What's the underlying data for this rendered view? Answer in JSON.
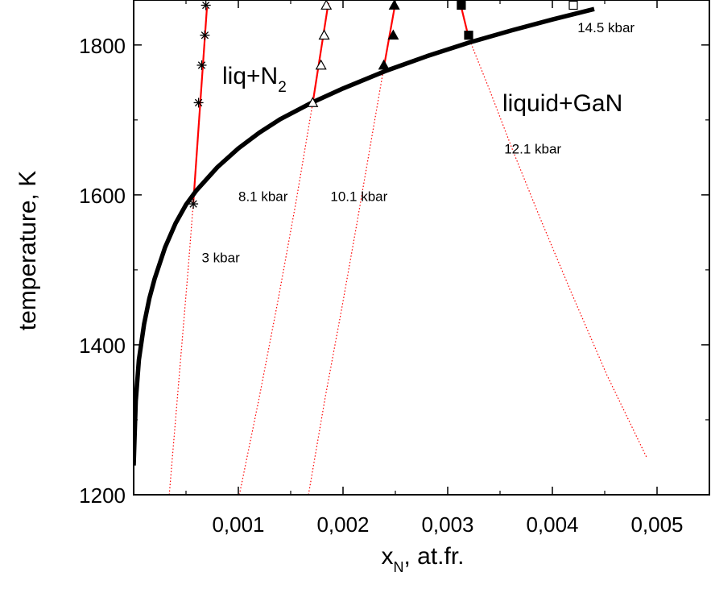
{
  "chart_data": {
    "type": "line",
    "xlabel": "x",
    "xlabel_sub": "N",
    "xlabel_suffix": ", at.fr.",
    "ylabel": "temperature, K",
    "xlim": [
      0.0,
      0.0055
    ],
    "ylim": [
      1200,
      1860
    ],
    "x_ticks": [
      0.001,
      0.002,
      0.003,
      0.004,
      0.005
    ],
    "x_tick_labels": [
      "0,001",
      "0,002",
      "0,003",
      "0,004",
      "0,005"
    ],
    "y_ticks": [
      1200,
      1400,
      1600,
      1800
    ],
    "y_tick_labels": [
      "1200",
      "1400",
      "1600",
      "1800"
    ],
    "grid": false,
    "regions": {
      "liq_n2": "liq+N",
      "liq_n2_sub": "2",
      "liquid_gan": "liquid+GaN"
    },
    "liquidus": {
      "color": "#000000",
      "x": [
        0.0,
        2e-05,
        5e-05,
        0.0001,
        0.00015,
        0.0002,
        0.0003,
        0.0004,
        0.0005,
        0.0006,
        0.0008,
        0.001,
        0.0012,
        0.0014,
        0.0017,
        0.002,
        0.0024,
        0.0028,
        0.0032,
        0.0036,
        0.004,
        0.0044
      ],
      "y": [
        1239,
        1325,
        1380,
        1428,
        1462,
        1488,
        1530,
        1562,
        1587,
        1606,
        1637,
        1662,
        1683,
        1701,
        1723,
        1742,
        1765,
        1785,
        1803,
        1819,
        1834,
        1848
      ]
    },
    "isobars": [
      {
        "label": "3 kbar",
        "label_at": [
          0.00065,
          1510
        ],
        "color": "#ff0000",
        "dotted": {
          "x": [
            0.00034,
            0.0004,
            0.00046,
            0.00052,
            0.00057
          ],
          "y": [
            1200,
            1300,
            1400,
            1500,
            1590
          ]
        },
        "solid": {
          "x": [
            0.00057,
            0.0007
          ],
          "y": [
            1590,
            1850
          ]
        },
        "marker": "star",
        "points": {
          "x": [
            0.00057,
            0.00062,
            0.00065,
            0.00068,
            0.00069
          ],
          "y": [
            1588,
            1723,
            1773,
            1813,
            1853
          ]
        }
      },
      {
        "label": "8.1 kbar",
        "label_at": [
          0.001,
          1592
        ],
        "color": "#ff0000",
        "dotted": {
          "x": [
            0.00101,
            0.0012,
            0.00138,
            0.00155,
            0.00171
          ],
          "y": [
            1200,
            1330,
            1460,
            1590,
            1722
          ]
        },
        "solid": {
          "x": [
            0.00171,
            0.00186
          ],
          "y": [
            1722,
            1856
          ]
        },
        "marker": "triangle-open",
        "points": {
          "x": [
            0.00171,
            0.00179,
            0.00182,
            0.00184
          ],
          "y": [
            1723,
            1773,
            1813,
            1853
          ]
        }
      },
      {
        "label": "10.1 kbar",
        "label_at": [
          0.00188,
          1592
        ],
        "color": "#ff0000",
        "dotted": {
          "x": [
            0.00167,
            0.00183,
            0.00199,
            0.00213,
            0.00226,
            0.00239
          ],
          "y": [
            1200,
            1330,
            1450,
            1560,
            1665,
            1770
          ]
        },
        "solid": {
          "x": [
            0.00239,
            0.0025
          ],
          "y": [
            1770,
            1856
          ]
        },
        "marker": "triangle-filled",
        "points": {
          "x": [
            0.00239,
            0.00248,
            0.00249
          ],
          "y": [
            1773,
            1813,
            1853
          ]
        }
      },
      {
        "label": "12.1 kbar",
        "label_at": [
          0.00354,
          1655
        ],
        "color": "#ff0000",
        "dotted": {
          "x": [
            0.0032,
            0.0034,
            0.00362,
            0.00388,
            0.00418,
            0.00452,
            0.0049
          ],
          "y": [
            1810,
            1740,
            1660,
            1570,
            1470,
            1360,
            1250
          ]
        },
        "solid": {
          "x": [
            0.00312,
            0.0032
          ],
          "y": [
            1856,
            1810
          ]
        },
        "marker": "square-filled",
        "points": {
          "x": [
            0.00313,
            0.0032
          ],
          "y": [
            1853,
            1813
          ]
        }
      },
      {
        "label": "14.5 kbar",
        "label_at": [
          0.00424,
          1817
        ],
        "color": "#ff0000",
        "dotted": null,
        "solid": null,
        "marker": "square-open",
        "points": {
          "x": [
            0.0042
          ],
          "y": [
            1853
          ]
        }
      }
    ]
  }
}
